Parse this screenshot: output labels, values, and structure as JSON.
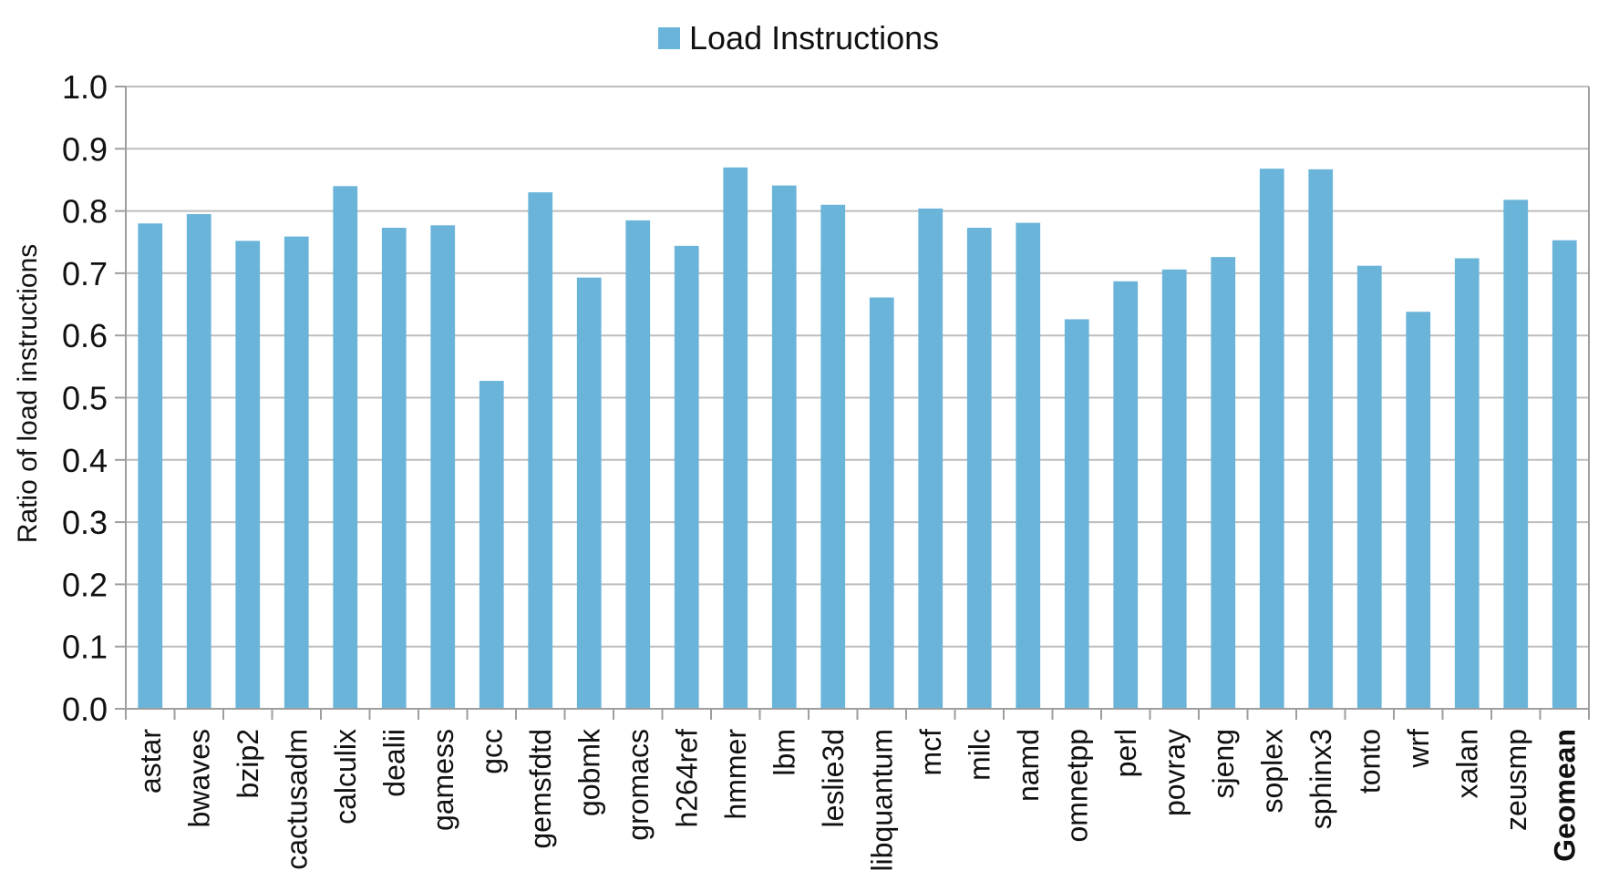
{
  "colors": {
    "bar": "#6AB4DA",
    "grid": "#BDBDBD",
    "axis": "#9E9E9E",
    "text": "#111111"
  },
  "legend": {
    "label": "Load Instructions",
    "placement": "top-center"
  },
  "chart_data": {
    "type": "bar",
    "title": "",
    "xlabel": "",
    "ylabel": "Ratio of load instructions",
    "ylim": [
      0.0,
      1.0
    ],
    "ytick_step": 0.1,
    "ytick_labels": [
      "0.0",
      "0.1",
      "0.2",
      "0.3",
      "0.4",
      "0.5",
      "0.6",
      "0.7",
      "0.8",
      "0.9",
      "1.0"
    ],
    "grid": true,
    "categories": [
      "astar",
      "bwaves",
      "bzip2",
      "cactusadm",
      "calculix",
      "dealii",
      "gamess",
      "gcc",
      "gemsfdtd",
      "gobmk",
      "gromacs",
      "h264ref",
      "hmmer",
      "lbm",
      "leslie3d",
      "libquantum",
      "mcf",
      "milc",
      "namd",
      "omnetpp",
      "perl",
      "povray",
      "sjeng",
      "soplex",
      "sphinx3",
      "tonto",
      "wrf",
      "xalan",
      "zeusmp",
      "Geomean"
    ],
    "bold_categories": [
      "Geomean"
    ],
    "series": [
      {
        "name": "Load Instructions",
        "values": [
          0.78,
          0.795,
          0.752,
          0.759,
          0.84,
          0.773,
          0.777,
          0.527,
          0.83,
          0.693,
          0.785,
          0.744,
          0.87,
          0.841,
          0.81,
          0.661,
          0.804,
          0.773,
          0.781,
          0.626,
          0.687,
          0.706,
          0.726,
          0.868,
          0.867,
          0.712,
          0.638,
          0.724,
          0.818,
          0.753
        ]
      }
    ]
  }
}
